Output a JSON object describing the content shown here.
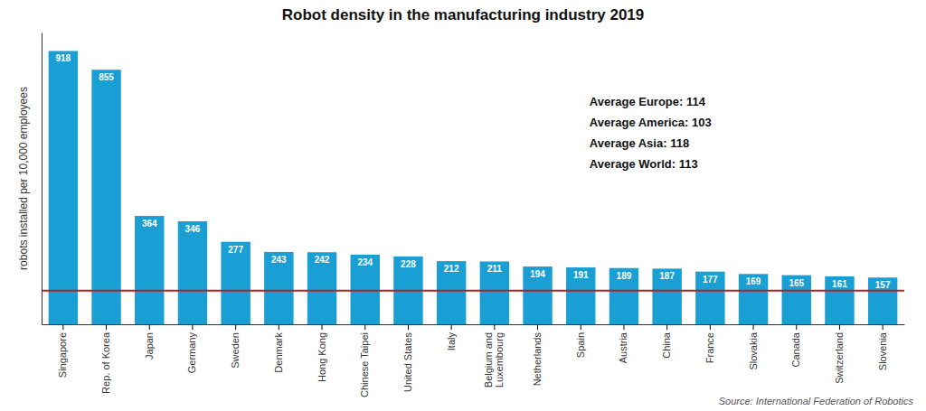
{
  "chart_data": {
    "type": "bar",
    "title": "Robot density in the manufacturing industry 2019",
    "ylabel": "robots installed per 10,000 employees",
    "source": "Source: International Federation of Robotics",
    "categories": [
      "Singapore",
      "Rep. of Korea",
      "Japan",
      "Germany",
      "Sweden",
      "Denmark",
      "Hong Kong",
      "Chinese Taipei",
      "United States",
      "Italy",
      "Belgium and\nLuxembourg",
      "Netherlands",
      "Spain",
      "Austria",
      "China",
      "France",
      "Slovakia",
      "Canada",
      "Switzerland",
      "Slovenia"
    ],
    "values": [
      918,
      855,
      364,
      346,
      277,
      243,
      242,
      234,
      228,
      212,
      211,
      194,
      191,
      189,
      187,
      177,
      169,
      165,
      161,
      157
    ],
    "color": "#1a9fd4",
    "data_labels": true,
    "reference_lines": [
      {
        "value": 113,
        "color": "#b22222"
      }
    ],
    "annotations": [
      "Average Europe: 114",
      "Average America: 103",
      "Average Asia: 118",
      "Average World: 113"
    ],
    "ylim": [
      0,
      980
    ],
    "yticks": [],
    "grid": false,
    "tick_labels": "x"
  }
}
